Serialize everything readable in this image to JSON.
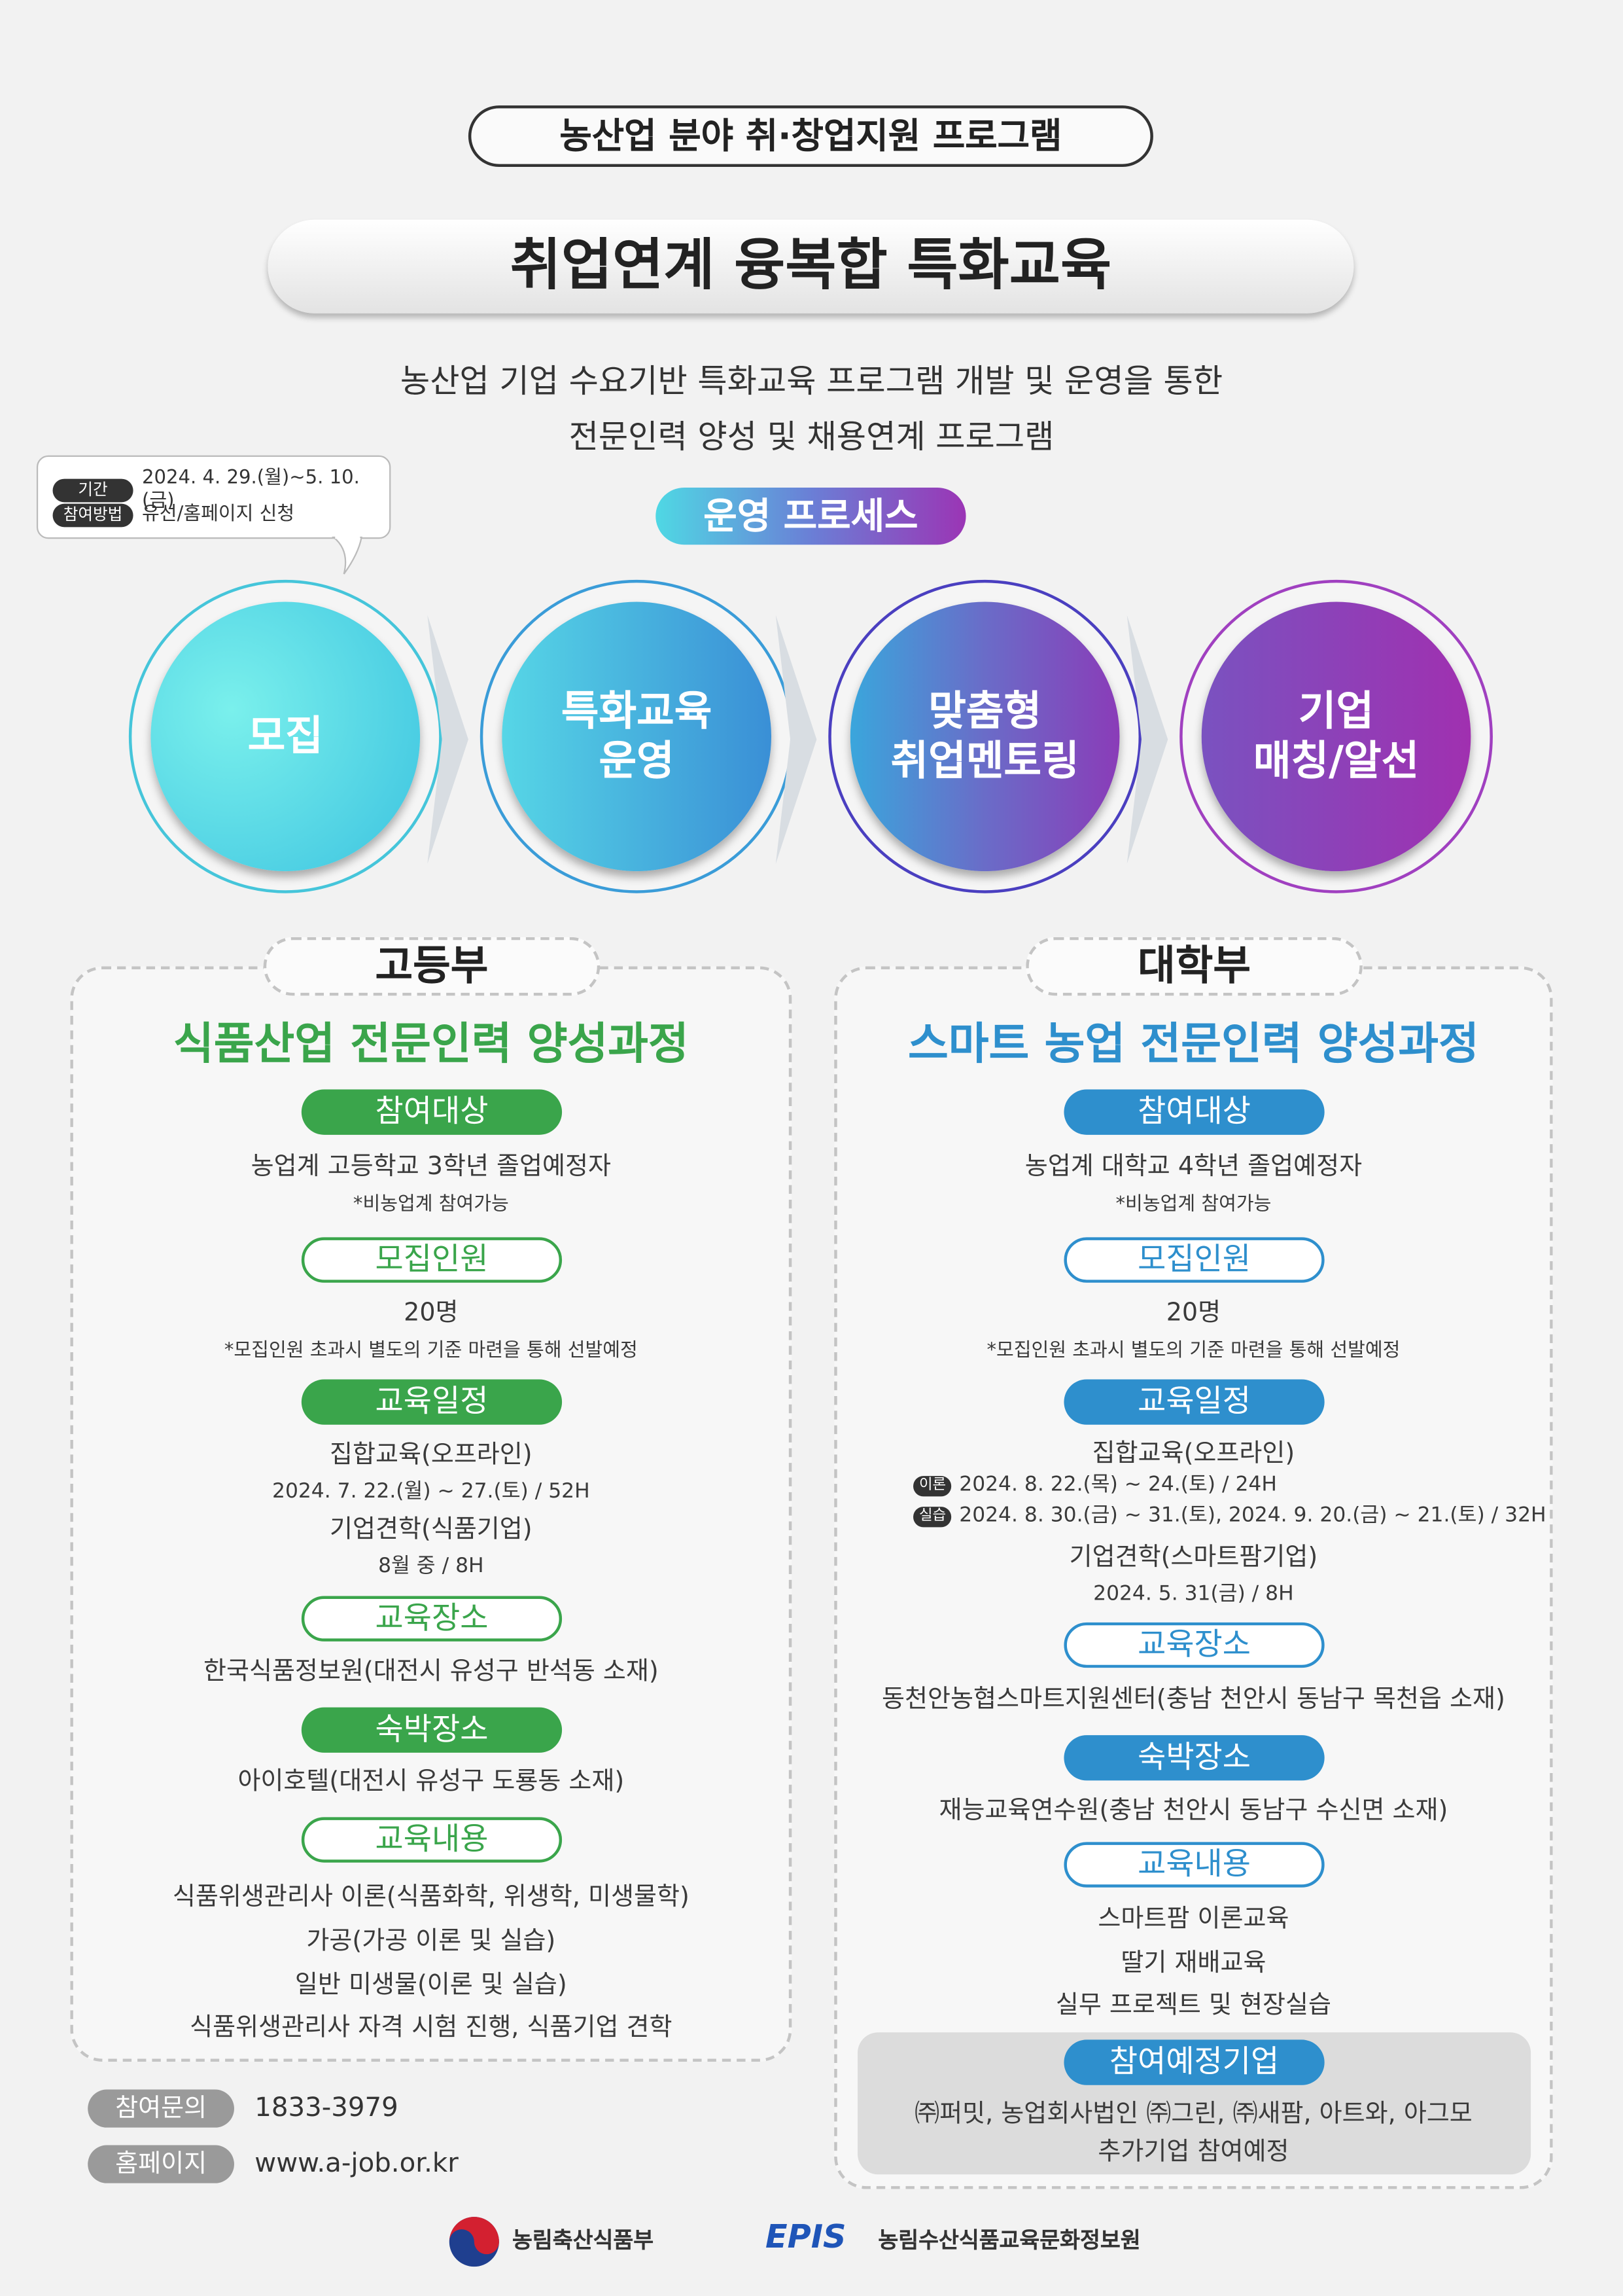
{
  "header": {
    "program": "농산업 분야 취·창업지원 프로그램",
    "title": "취업연계 융복합 특화교육",
    "subtitle_lines": [
      "농산업 기업 수요기반 특화교육 프로그램 개발 및 운영을 통한",
      "전문인력 양성 및 채용연계 프로그램"
    ]
  },
  "info": {
    "period_label": "기간",
    "period": "2024. 4. 29.(월)~5. 10.(금)",
    "method_label": "참여방법",
    "method": "유선/홈페이지 신청"
  },
  "process": {
    "title": "운영 프로세스",
    "steps": [
      "모집",
      "특화교육\n운영",
      "맞춤형\n취업멘토링",
      "기업\n매칭/알선"
    ]
  },
  "high": {
    "tab": "고등부",
    "title": "식품산업 전문인력 양성과정",
    "color": "#3aa54b",
    "target_label": "참여대상",
    "target": "농업계 고등학교 3학년 졸업예정자",
    "target_note": "*비농업계 참여가능",
    "count_label": "모집인원",
    "count": "20명",
    "count_note": "*모집인원 초과시 별도의 기준 마련을 통해 선발예정",
    "schedule_label": "교육일정",
    "s1": "집합교육(오프라인)",
    "s1d": "2024. 7. 22.(월) ~ 27.(토) / 52H",
    "s2": "기업견학(식품기업)",
    "s2d": "8월 중 / 8H",
    "place_label": "교육장소",
    "place": "한국식품정보원(대전시 유성구 반석동 소재)",
    "stay_label": "숙박장소",
    "stay": "아이호텔(대전시 유성구 도룡동 소재)",
    "content_label": "교육내용",
    "content": [
      "식품위생관리사 이론(식품화학, 위생학, 미생물학)",
      "가공(가공 이론 및 실습)",
      "일반 미생물(이론 및 실습)",
      "식품위생관리사 자격 시험 진행, 식품기업 견학"
    ]
  },
  "univ": {
    "tab": "대학부",
    "title": "스마트 농업 전문인력 양성과정",
    "color": "#2e8fcd",
    "target_label": "참여대상",
    "target": "농업계 대학교 4학년 졸업예정자",
    "target_note": "*비농업계 참여가능",
    "count_label": "모집인원",
    "count": "20명",
    "count_note": "*모집인원 초과시 별도의 기준 마련을 통해 선발예정",
    "schedule_label": "교육일정",
    "s1": "집합교육(오프라인)",
    "theory_tag": "이론",
    "theory": "2024. 8. 22.(목) ~ 24.(토) / 24H",
    "practice_tag": "실습",
    "practice": "2024. 8. 30.(금) ~ 31.(토), 2024. 9. 20.(금) ~ 21.(토) / 32H",
    "s2": "기업견학(스마트팜기업)",
    "s2d": "2024. 5. 31(금)  / 8H",
    "place_label": "교육장소",
    "place": "동천안농협스마트지원센터(충남 천안시 동남구 목천읍 소재)",
    "stay_label": "숙박장소",
    "stay": "재능교육연수원(충남 천안시 동남구 수신면 소재)",
    "content_label": "교육내용",
    "content": [
      "스마트팜 이론교육",
      "딸기 재배교육",
      "실무 프로젝트 및 현장실습"
    ],
    "company_label": "참여예정기업",
    "companies": "㈜퍼밋, 농업회사법인 ㈜그린, ㈜새팜, 아트와, 아그모",
    "companies_note": "추가기업 참여예정"
  },
  "contact": {
    "inquiry_label": "참여문의",
    "phone": "1833-3979",
    "homepage_label": "홈페이지",
    "url": "www.a-job.or.kr"
  },
  "footer": {
    "org1": "농림축산식품부",
    "org2_logo": "EPIS",
    "org2": "농림수산식품교육문화정보원"
  }
}
